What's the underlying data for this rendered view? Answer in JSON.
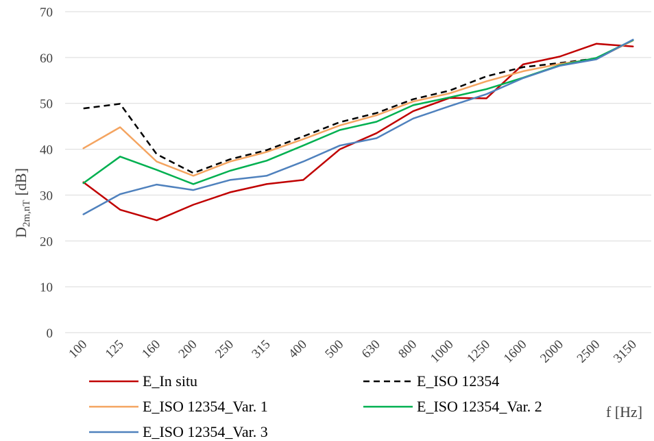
{
  "chart_data": {
    "type": "line",
    "categories": [
      "100",
      "125",
      "160",
      "200",
      "250",
      "315",
      "400",
      "500",
      "630",
      "800",
      "1000",
      "1250",
      "1600",
      "2000",
      "2500",
      "3150"
    ],
    "ylabel": {
      "base": "D",
      "sub": "2m,nT",
      "unit": "[dB]"
    },
    "xlabel": "f [Hz]",
    "ylim": [
      0,
      70
    ],
    "yticks": [
      0,
      10,
      20,
      30,
      40,
      50,
      60,
      70
    ],
    "grid": true,
    "legend_position": "bottom",
    "series": [
      {
        "name": "E_In situ",
        "color": "#c00000",
        "dash": "solid",
        "values": [
          32.8,
          26.8,
          24.5,
          27.9,
          30.6,
          32.4,
          33.3,
          40.0,
          43.5,
          48.3,
          51.2,
          51.1,
          58.5,
          60.2,
          63.0,
          62.4
        ]
      },
      {
        "name": "E_ISO 12354",
        "color": "#000000",
        "dash": "dashed",
        "values": [
          48.9,
          49.9,
          38.9,
          34.8,
          37.8,
          39.8,
          42.8,
          45.9,
          47.9,
          50.9,
          52.8,
          55.9,
          57.9,
          58.8,
          59.8,
          63.8
        ]
      },
      {
        "name": "E_ISO 12354_Var. 1",
        "color": "#f4a460",
        "dash": "solid",
        "values": [
          40.2,
          44.8,
          37.3,
          34.2,
          37.3,
          39.4,
          42.2,
          45.2,
          47.4,
          50.4,
          52.2,
          54.8,
          57.0,
          58.6,
          59.7,
          63.7
        ]
      },
      {
        "name": "E_ISO 12354_Var. 2",
        "color": "#00b050",
        "dash": "solid",
        "values": [
          32.6,
          38.4,
          35.5,
          32.4,
          35.3,
          37.5,
          40.8,
          44.2,
          46.0,
          49.6,
          51.3,
          53.1,
          55.6,
          58.3,
          59.9,
          63.8
        ]
      },
      {
        "name": "E_ISO 12354_Var. 3",
        "color": "#4f81bd",
        "dash": "solid",
        "values": [
          25.8,
          30.2,
          32.3,
          31.1,
          33.3,
          34.2,
          37.3,
          40.8,
          42.4,
          46.7,
          49.4,
          52.0,
          55.5,
          58.2,
          59.6,
          63.9
        ]
      }
    ]
  }
}
